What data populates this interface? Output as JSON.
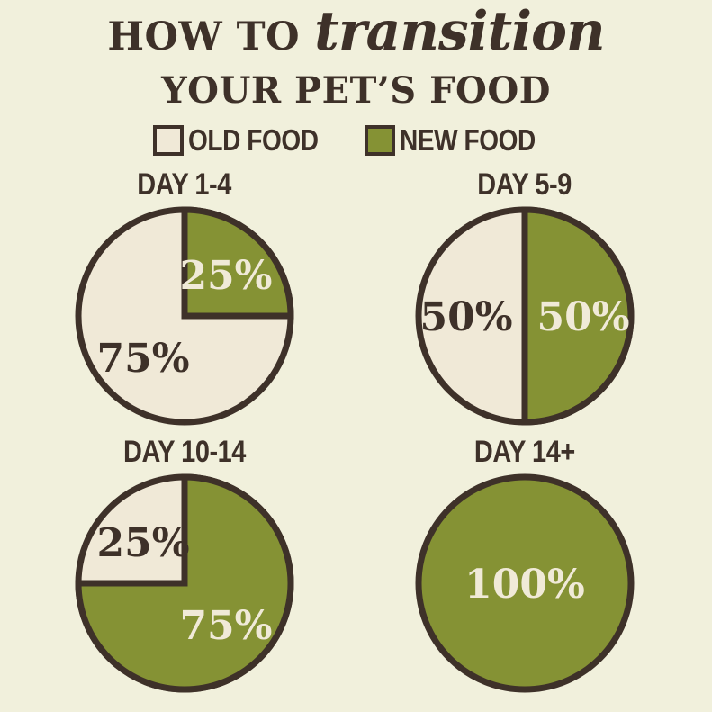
{
  "header": {
    "title_prefix": "HOW TO",
    "title_script": "transition",
    "subtitle": "YOUR PET’S FOOD"
  },
  "legend": {
    "items": [
      {
        "label": "OLD FOOD",
        "food": "old"
      },
      {
        "label": "NEW FOOD",
        "food": "new"
      }
    ]
  },
  "colors": {
    "background": "#f1f0dc",
    "old_food": "#f0e9d7",
    "new_food": "#859234",
    "outline": "#3e3129",
    "text_dark": "#3e3129",
    "text_cream": "#f0ead8"
  },
  "chart_data": [
    {
      "type": "pie",
      "title": "DAY 1-4",
      "legend_position": "top",
      "slices": [
        {
          "food": "new",
          "name": "NEW FOOD",
          "value": 25,
          "label": "25%"
        },
        {
          "food": "old",
          "name": "OLD FOOD",
          "value": 75,
          "label": "75%"
        }
      ]
    },
    {
      "type": "pie",
      "title": "DAY 5-9",
      "legend_position": "top",
      "slices": [
        {
          "food": "new",
          "name": "NEW FOOD",
          "value": 50,
          "label": "50%"
        },
        {
          "food": "old",
          "name": "OLD FOOD",
          "value": 50,
          "label": "50%"
        }
      ]
    },
    {
      "type": "pie",
      "title": "DAY 10-14",
      "legend_position": "top",
      "slices": [
        {
          "food": "new",
          "name": "NEW FOOD",
          "value": 75,
          "label": "75%"
        },
        {
          "food": "old",
          "name": "OLD FOOD",
          "value": 25,
          "label": "25%"
        }
      ]
    },
    {
      "type": "pie",
      "title": "DAY 14+",
      "legend_position": "top",
      "slices": [
        {
          "food": "new",
          "name": "NEW FOOD",
          "value": 100,
          "label": "100%"
        }
      ]
    }
  ]
}
